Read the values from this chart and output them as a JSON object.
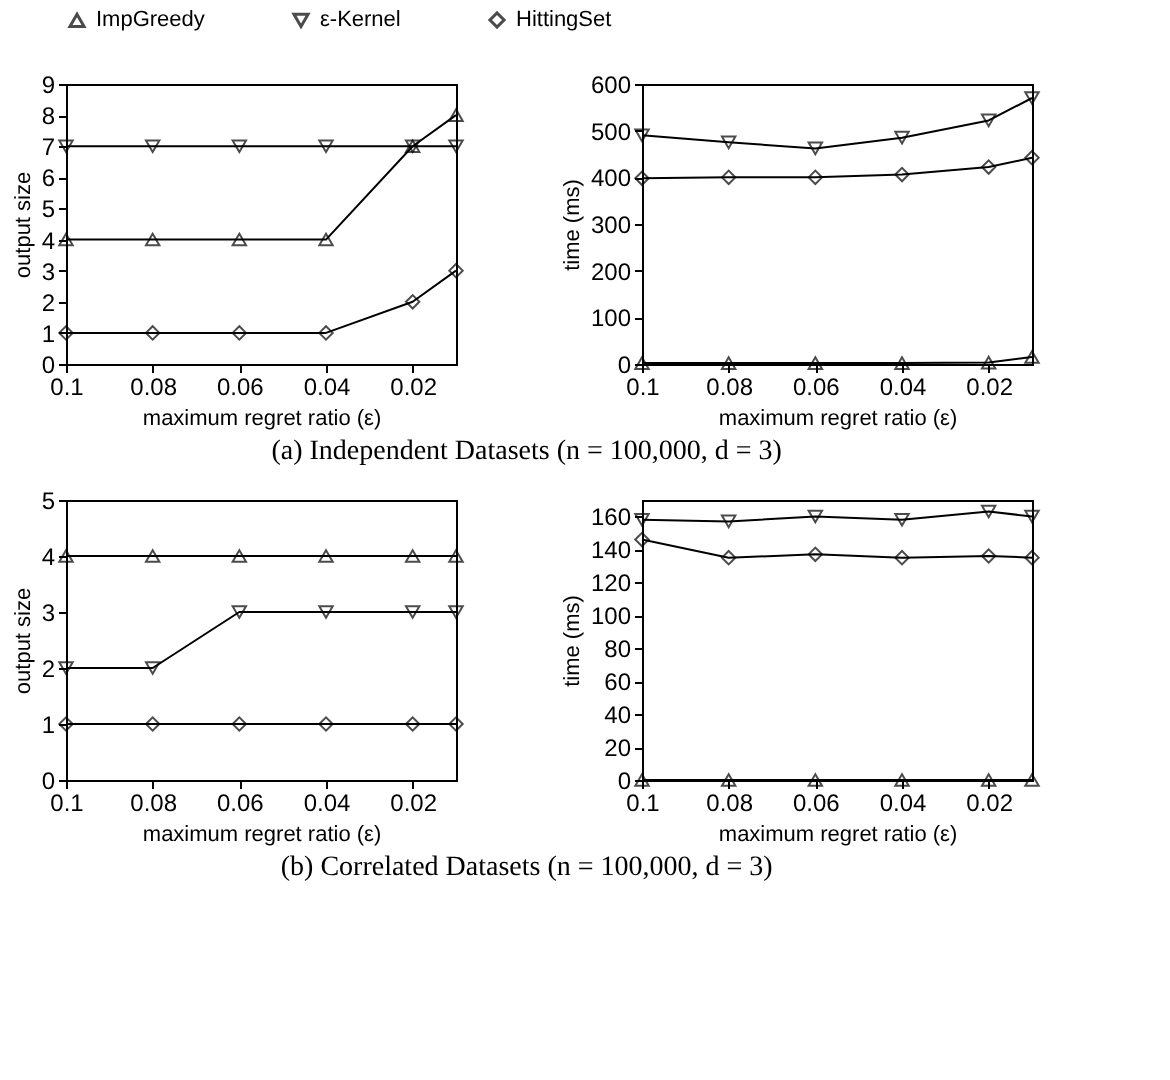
{
  "chart_data": [
    {
      "type": "line",
      "xlabel": "maximum regret ratio (ε)",
      "ylabel": "output size",
      "x": [
        0.1,
        0.08,
        0.06,
        0.04,
        0.02,
        0.01
      ],
      "xlim": [
        0.1,
        0.01
      ],
      "xticks": [
        0.1,
        0.08,
        0.06,
        0.04,
        0.02
      ],
      "ylim": [
        0,
        9
      ],
      "yticks": [
        0,
        1,
        2,
        3,
        4,
        5,
        6,
        7,
        8,
        9
      ],
      "grid": false,
      "legend": "top",
      "annotations": [
        "(a) Independent Datasets (n = 100,000, d = 3)"
      ],
      "series": [
        {
          "name": "ImpGreedy",
          "color": "#000000",
          "marker": "triangle",
          "values": [
            4,
            4,
            4,
            4,
            7,
            8
          ]
        },
        {
          "name": "ε-Kernel",
          "color": "#000000",
          "marker": "triangle-down",
          "values": [
            7,
            7,
            7,
            7,
            7,
            7
          ]
        },
        {
          "name": "HittingSet",
          "color": "#000000",
          "marker": "diamond",
          "values": [
            1,
            1,
            1,
            1,
            2,
            3
          ]
        }
      ]
    },
    {
      "type": "line",
      "xlabel": "maximum regret ratio (ε)",
      "ylabel": "time (ms)",
      "x": [
        0.1,
        0.08,
        0.06,
        0.04,
        0.02,
        0.01
      ],
      "xlim": [
        0.1,
        0.01
      ],
      "xticks": [
        0.1,
        0.08,
        0.06,
        0.04,
        0.02
      ],
      "ylim": [
        0,
        600
      ],
      "yticks": [
        0,
        100,
        200,
        300,
        400,
        500,
        600
      ],
      "grid": false,
      "legend": "top",
      "series": [
        {
          "name": "ImpGreedy",
          "color": "#000000",
          "marker": "triangle",
          "values": [
            2,
            2,
            2,
            2,
            3,
            15
          ]
        },
        {
          "name": "ε-Kernel",
          "color": "#000000",
          "marker": "triangle-down",
          "values": [
            490,
            475,
            462,
            485,
            522,
            570
          ]
        },
        {
          "name": "HittingSet",
          "color": "#000000",
          "marker": "diamond",
          "values": [
            398,
            400,
            400,
            406,
            422,
            442
          ]
        }
      ]
    },
    {
      "type": "line",
      "xlabel": "maximum regret ratio (ε)",
      "ylabel": "output size",
      "x": [
        0.1,
        0.08,
        0.06,
        0.04,
        0.02,
        0.01
      ],
      "xlim": [
        0.1,
        0.01
      ],
      "xticks": [
        0.1,
        0.08,
        0.06,
        0.04,
        0.02
      ],
      "ylim": [
        0,
        5
      ],
      "yticks": [
        0,
        1,
        2,
        3,
        4,
        5
      ],
      "grid": false,
      "legend": "top",
      "annotations": [
        "(b) Correlated Datasets (n = 100,000, d = 3)"
      ],
      "series": [
        {
          "name": "ImpGreedy",
          "color": "#000000",
          "marker": "triangle",
          "values": [
            4,
            4,
            4,
            4,
            4,
            4
          ]
        },
        {
          "name": "ε-Kernel",
          "color": "#000000",
          "marker": "triangle-down",
          "values": [
            2,
            2,
            3,
            3,
            3,
            3
          ]
        },
        {
          "name": "HittingSet",
          "color": "#000000",
          "marker": "diamond",
          "values": [
            1,
            1,
            1,
            1,
            1,
            1
          ]
        }
      ]
    },
    {
      "type": "line",
      "xlabel": "maximum regret ratio (ε)",
      "ylabel": "time (ms)",
      "x": [
        0.1,
        0.08,
        0.06,
        0.04,
        0.02,
        0.01
      ],
      "xlim": [
        0.1,
        0.01
      ],
      "xticks": [
        0.1,
        0.08,
        0.06,
        0.04,
        0.02
      ],
      "ylim": [
        0,
        170
      ],
      "yticks": [
        0,
        20,
        40,
        60,
        80,
        100,
        120,
        140,
        160
      ],
      "grid": false,
      "legend": "top",
      "series": [
        {
          "name": "ImpGreedy",
          "color": "#000000",
          "marker": "triangle",
          "values": [
            0,
            0,
            0,
            0,
            0,
            0
          ]
        },
        {
          "name": "ε-Kernel",
          "color": "#000000",
          "marker": "triangle-down",
          "values": [
            158,
            157,
            160,
            158,
            163,
            160
          ]
        },
        {
          "name": "HittingSet",
          "color": "#000000",
          "marker": "diamond",
          "values": [
            146,
            135,
            137,
            135,
            136,
            135
          ]
        }
      ]
    }
  ]
}
